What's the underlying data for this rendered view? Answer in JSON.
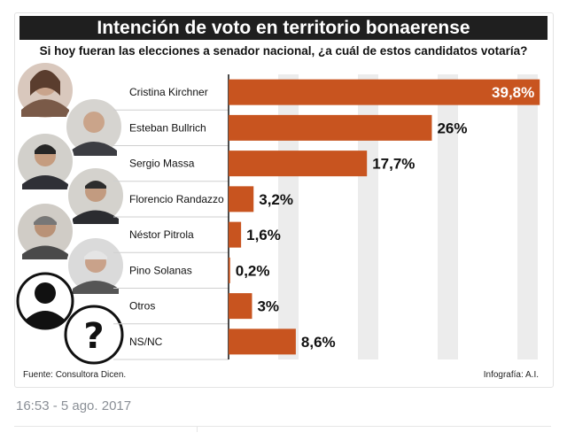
{
  "chart_data": {
    "type": "bar",
    "orientation": "horizontal",
    "title": "Intención de voto en territorio bonaerense",
    "subtitle": "Si hoy fueran las elecciones a senador nacional, ¿a cuál de estos candidatos votaría?",
    "categories": [
      "Cristina Kirchner",
      "Esteban Bullrich",
      "Sergio Massa",
      "Florencio Randazzo",
      "Néstor Pitrola",
      "Pino Solanas",
      "Otros",
      "NS/NC"
    ],
    "values": [
      39.8,
      26,
      17.7,
      3.2,
      1.6,
      0.2,
      3,
      8.6
    ],
    "value_labels": [
      "39,8%",
      "26%",
      "17,7%",
      "3,2%",
      "1,6%",
      "0,2%",
      "3%",
      "8,6%"
    ],
    "xlim": [
      0,
      40
    ],
    "grid": true,
    "bar_color": "#c8541f"
  },
  "source": "Fuente: Consultora Dicen.",
  "credit": "Infografía: A.I.",
  "timestamp": "16:53 - 5 ago. 2017"
}
